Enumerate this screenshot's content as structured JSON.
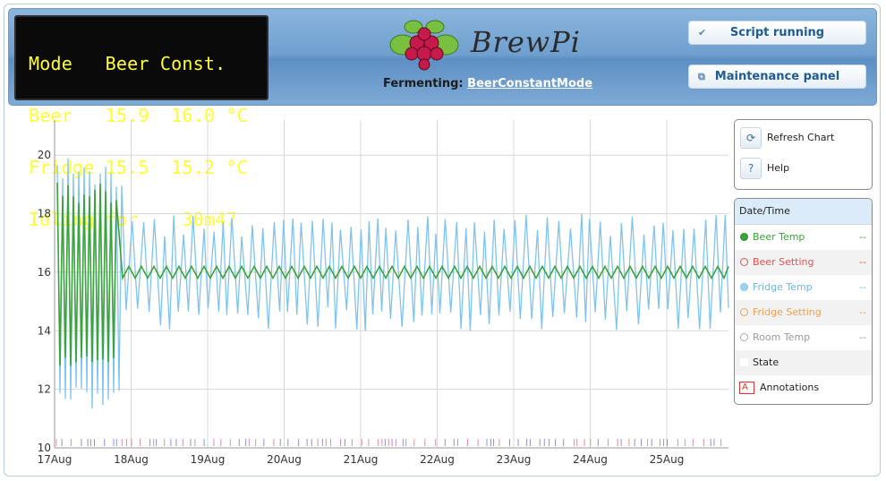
{
  "lcd": {
    "lines": [
      "Mode   Beer Const.",
      "Beer   15.9  16.0 °C",
      "Fridge 15.5  15.2 °C",
      "Idling for    30m47"
    ]
  },
  "logo": {
    "text": "BrewPi"
  },
  "fermenting": {
    "label": "Fermenting:",
    "profile": "BeerConstantMode"
  },
  "buttons": {
    "script_status": "Script running",
    "maintenance": "Maintenance panel",
    "refresh_chart": "Refresh Chart",
    "help": "Help"
  },
  "legend": {
    "header": "Date/Time",
    "items": [
      {
        "label": "Beer Temp",
        "value": "--",
        "color": "#3aa33a"
      },
      {
        "label": "Beer Setting",
        "value": "--",
        "color": "#e05252"
      },
      {
        "label": "Fridge Temp",
        "value": "--",
        "color": "#7fc4f0"
      },
      {
        "label": "Fridge Setting",
        "value": "--",
        "color": "#f0a050"
      },
      {
        "label": "Room Temp",
        "value": "--",
        "color": "#aaaaaa"
      },
      {
        "label": "State",
        "value": ""
      },
      {
        "label": "Annotations",
        "value": ""
      }
    ]
  },
  "chart_data": {
    "type": "line",
    "x": [
      "17Aug",
      "18Aug",
      "19Aug",
      "20Aug",
      "21Aug",
      "22Aug",
      "23Aug",
      "24Aug",
      "25Aug"
    ],
    "ylim": [
      10,
      21.2
    ],
    "yticks": [
      10,
      12,
      14,
      16,
      18,
      20
    ],
    "grid": true,
    "series": [
      {
        "name": "Beer Temp",
        "color": "#3aa33a",
        "values": [
          17.8,
          16.0,
          16.0,
          16.0,
          16.0,
          16.0,
          16.0,
          16.0,
          16.0
        ],
        "notes_oscillation_range": [
          12.5,
          19.4
        ]
      },
      {
        "name": "Fridge Temp",
        "color": "#7fc4f0",
        "values": [
          18.5,
          15.8,
          15.9,
          16.0,
          16.0,
          15.9,
          15.9,
          16.0,
          15.9
        ],
        "notes_oscillation_range": [
          11.0,
          20.4
        ]
      }
    ]
  }
}
